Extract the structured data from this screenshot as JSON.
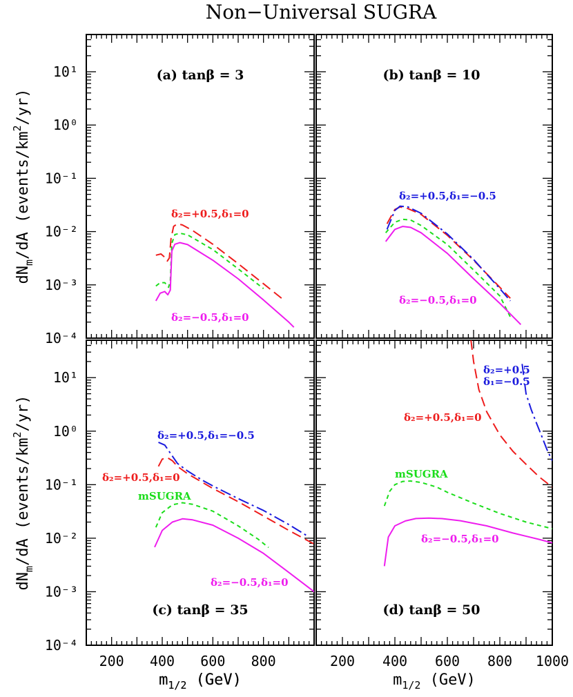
{
  "figure_title": "Non−Universal SUGRA",
  "colors": {
    "delta_pos_delta1_0": "#ee1c1c",
    "delta_pos_delta1_neg": "#1a1add",
    "msugra": "#1bdd1b",
    "delta_neg": "#ee1cee"
  },
  "chart_data": [
    {
      "type": "line",
      "panel": "a",
      "title": "(a) tanβ = 3",
      "xlabel": "m1/2 (GeV)",
      "ylabel": "dNm/dA (events/km²/yr)",
      "xlim": [
        100,
        1000
      ],
      "ylim": [
        0.0001,
        50
      ],
      "yscale": "log",
      "xticks": [
        200,
        400,
        600,
        800
      ],
      "yticks": [
        "10⁻⁴",
        "10⁻³",
        "10⁻²",
        "10⁻¹",
        "10⁰",
        "10¹"
      ],
      "series": [
        {
          "style": "red-long-dash",
          "x": [
            375,
            395,
            410,
            420,
            428,
            435,
            445,
            460,
            480,
            520,
            600,
            700,
            800,
            880
          ],
          "y": [
            0.0036,
            0.0038,
            0.0033,
            0.0028,
            0.0032,
            0.0075,
            0.0125,
            0.014,
            0.0133,
            0.0105,
            0.0058,
            0.0025,
            0.00105,
            0.00052
          ]
        },
        {
          "style": "green-short-dash",
          "x": [
            375,
            392,
            410,
            425,
            432,
            438,
            450,
            470,
            500,
            600,
            700,
            800
          ],
          "y": [
            0.00095,
            0.0011,
            0.0011,
            0.0009,
            0.0012,
            0.006,
            0.0088,
            0.0093,
            0.0087,
            0.0046,
            0.002,
            0.00085
          ]
        },
        {
          "style": "magenta-solid",
          "x": [
            375,
            392,
            410,
            422,
            432,
            438,
            450,
            470,
            500,
            600,
            700,
            800,
            900,
            920
          ],
          "y": [
            0.0005,
            0.0007,
            0.00075,
            0.00065,
            0.0008,
            0.0043,
            0.0058,
            0.0062,
            0.0057,
            0.0029,
            0.0013,
            0.00052,
            0.0002,
            0.00016
          ]
        }
      ],
      "annotations": [
        {
          "text": "δ₂=+0.5,δ₁=0",
          "color": "delta_pos_delta1_0"
        },
        {
          "text": "δ₂=−0.5,δ₁=0",
          "color": "delta_neg"
        }
      ]
    },
    {
      "type": "line",
      "panel": "b",
      "title": "(b) tanβ = 10",
      "xlim": [
        100,
        1000
      ],
      "ylim": [
        0.0001,
        50
      ],
      "yscale": "log",
      "xticks": [
        200,
        400,
        600,
        800,
        1000
      ],
      "series": [
        {
          "style": "red-long-dash",
          "x": [
            370,
            400,
            420,
            450,
            500,
            600,
            700,
            800,
            840
          ],
          "y": [
            0.014,
            0.026,
            0.029,
            0.027,
            0.021,
            0.0085,
            0.0029,
            0.0009,
            0.00056
          ]
        },
        {
          "style": "blue-dash-dot",
          "x": [
            370,
            400,
            420,
            450,
            500,
            600,
            700,
            800,
            840
          ],
          "y": [
            0.011,
            0.025,
            0.03,
            0.029,
            0.022,
            0.009,
            0.003,
            0.00085,
            0.0005
          ]
        },
        {
          "style": "green-short-dash",
          "x": [
            365,
            400,
            430,
            460,
            500,
            600,
            700,
            800,
            840
          ],
          "y": [
            0.0095,
            0.015,
            0.017,
            0.0165,
            0.013,
            0.0057,
            0.0019,
            0.00062,
            0.00025
          ]
        },
        {
          "style": "magenta-solid",
          "x": [
            365,
            400,
            430,
            460,
            500,
            600,
            700,
            800,
            880
          ],
          "y": [
            0.0065,
            0.011,
            0.0125,
            0.012,
            0.0095,
            0.0039,
            0.0013,
            0.00045,
            0.00018
          ]
        }
      ],
      "annotations": [
        {
          "text": "δ₂=+0.5,δ₁=−0.5",
          "color": "delta_pos_delta1_neg"
        },
        {
          "text": "δ₂=−0.5,δ₁=0",
          "color": "delta_neg"
        }
      ]
    },
    {
      "type": "line",
      "panel": "c",
      "title": "(c) tanβ = 35",
      "xlabel": "m1/2 (GeV)",
      "ylabel": "dNm/dA (events/km²/yr)",
      "xlim": [
        100,
        1000
      ],
      "ylim": [
        0.0001,
        50
      ],
      "yscale": "log",
      "xticks": [
        200,
        400,
        600,
        800
      ],
      "yticks": [
        "10⁻⁴",
        "10⁻³",
        "10⁻²",
        "10⁻¹",
        "10⁰",
        "10¹"
      ],
      "series": [
        {
          "style": "blue-dash-dot",
          "x": [
            385,
            410,
            430,
            460,
            500,
            560,
            600,
            700,
            800,
            900,
            980
          ],
          "y": [
            0.62,
            0.55,
            0.4,
            0.25,
            0.18,
            0.12,
            0.095,
            0.055,
            0.033,
            0.018,
            0.0105
          ]
        },
        {
          "style": "red-long-dash",
          "x": [
            385,
            400,
            420,
            440,
            460,
            500,
            600,
            700,
            800,
            900,
            1000
          ],
          "y": [
            0.22,
            0.3,
            0.32,
            0.28,
            0.22,
            0.16,
            0.085,
            0.048,
            0.026,
            0.014,
            0.0078
          ]
        },
        {
          "style": "green-short-dash",
          "x": [
            375,
            400,
            440,
            480,
            520,
            600,
            700,
            780,
            820
          ],
          "y": [
            0.016,
            0.03,
            0.042,
            0.046,
            0.043,
            0.032,
            0.017,
            0.0095,
            0.0067
          ]
        },
        {
          "style": "magenta-solid",
          "x": [
            370,
            400,
            440,
            480,
            520,
            600,
            700,
            800,
            900,
            1000
          ],
          "y": [
            0.0068,
            0.014,
            0.02,
            0.023,
            0.022,
            0.0175,
            0.01,
            0.0052,
            0.0023,
            0.001
          ]
        }
      ],
      "annotations": [
        {
          "text": "δ₂=+0.5,δ₁=−0.5",
          "color": "delta_pos_delta1_neg"
        },
        {
          "text": "δ₂=+0.5,δ₁=0",
          "color": "delta_pos_delta1_0"
        },
        {
          "text": "mSUGRA",
          "color": "msugra"
        },
        {
          "text": "δ₂=−0.5,δ₁=0",
          "color": "delta_neg"
        }
      ]
    },
    {
      "type": "line",
      "panel": "d",
      "title": "(d) tanβ = 50",
      "xlabel": "m1/2 (GeV)",
      "xlim": [
        100,
        1000
      ],
      "ylim": [
        0.0001,
        50
      ],
      "yscale": "log",
      "xticks": [
        200,
        400,
        600,
        800,
        1000
      ],
      "series": [
        {
          "style": "red-long-dash",
          "x": [
            690,
            700,
            720,
            750,
            800,
            850,
            900,
            950,
            1000
          ],
          "y": [
            50,
            20,
            6,
            2.3,
            0.85,
            0.42,
            0.24,
            0.14,
            0.09
          ]
        },
        {
          "style": "blue-dash-dot",
          "x": [
            885,
            900,
            920,
            940,
            960,
            980,
            1000
          ],
          "y": [
            18,
            5,
            2.5,
            1.4,
            0.8,
            0.45,
            0.28
          ]
        },
        {
          "style": "green-short-dash",
          "x": [
            360,
            380,
            400,
            430,
            460,
            500,
            560,
            600,
            700,
            800,
            900,
            1000
          ],
          "y": [
            0.04,
            0.075,
            0.1,
            0.115,
            0.117,
            0.11,
            0.09,
            0.072,
            0.045,
            0.029,
            0.02,
            0.015
          ]
        },
        {
          "style": "magenta-solid",
          "x": [
            360,
            375,
            400,
            440,
            480,
            530,
            580,
            650,
            750,
            850,
            950,
            1000
          ],
          "y": [
            0.003,
            0.0105,
            0.017,
            0.021,
            0.0233,
            0.0237,
            0.0232,
            0.0212,
            0.017,
            0.0125,
            0.0095,
            0.0082
          ]
        }
      ],
      "annotations": [
        {
          "text": "δ₂=+0.5",
          "color": "delta_pos_delta1_neg"
        },
        {
          "text": "δ₁=−0.5",
          "color": "delta_pos_delta1_neg"
        },
        {
          "text": "δ₂=+0.5,δ₁=0",
          "color": "delta_pos_delta1_0"
        },
        {
          "text": "mSUGRA",
          "color": "msugra"
        },
        {
          "text": "δ₂=−0.5,δ₁=0",
          "color": "delta_neg"
        }
      ]
    }
  ]
}
